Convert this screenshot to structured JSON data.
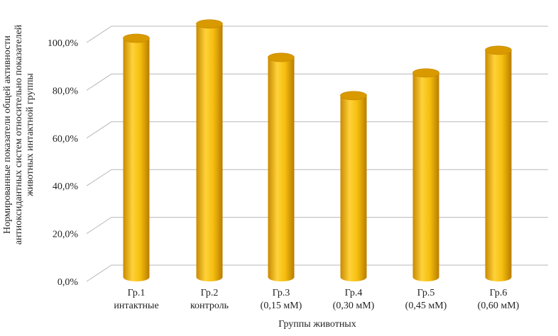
{
  "chart_data": {
    "type": "bar",
    "style": "3d-cylinder",
    "categories": [
      [
        "Гр.1",
        "интактные"
      ],
      [
        "Гр.2",
        "контроль"
      ],
      [
        "Гр.3",
        "(0,15 мМ)"
      ],
      [
        "Гр.4",
        "(0,30 мМ)"
      ],
      [
        "Гр.5",
        "(0,45 мМ)"
      ],
      [
        "Гр.6",
        "(0,60 мМ)"
      ]
    ],
    "values": [
      100.0,
      106.0,
      92.0,
      76.0,
      85.5,
      95.0
    ],
    "ylim": [
      0,
      100
    ],
    "yticks": [
      "0,0%",
      "20,0%",
      "40,0%",
      "60,0%",
      "80,0%",
      "100,0%"
    ],
    "xlabel": "Группы животных",
    "ylabel_lines": [
      "Нормированные показатели общей активности",
      "антиоксидантных систем относительно показателей",
      "животных интактной группы"
    ],
    "grid": true,
    "colors": {
      "bar_light": "#FFD23A",
      "bar_mid": "#F2B705",
      "bar_dark": "#C98A00",
      "grid": "#b8b8b8"
    }
  }
}
